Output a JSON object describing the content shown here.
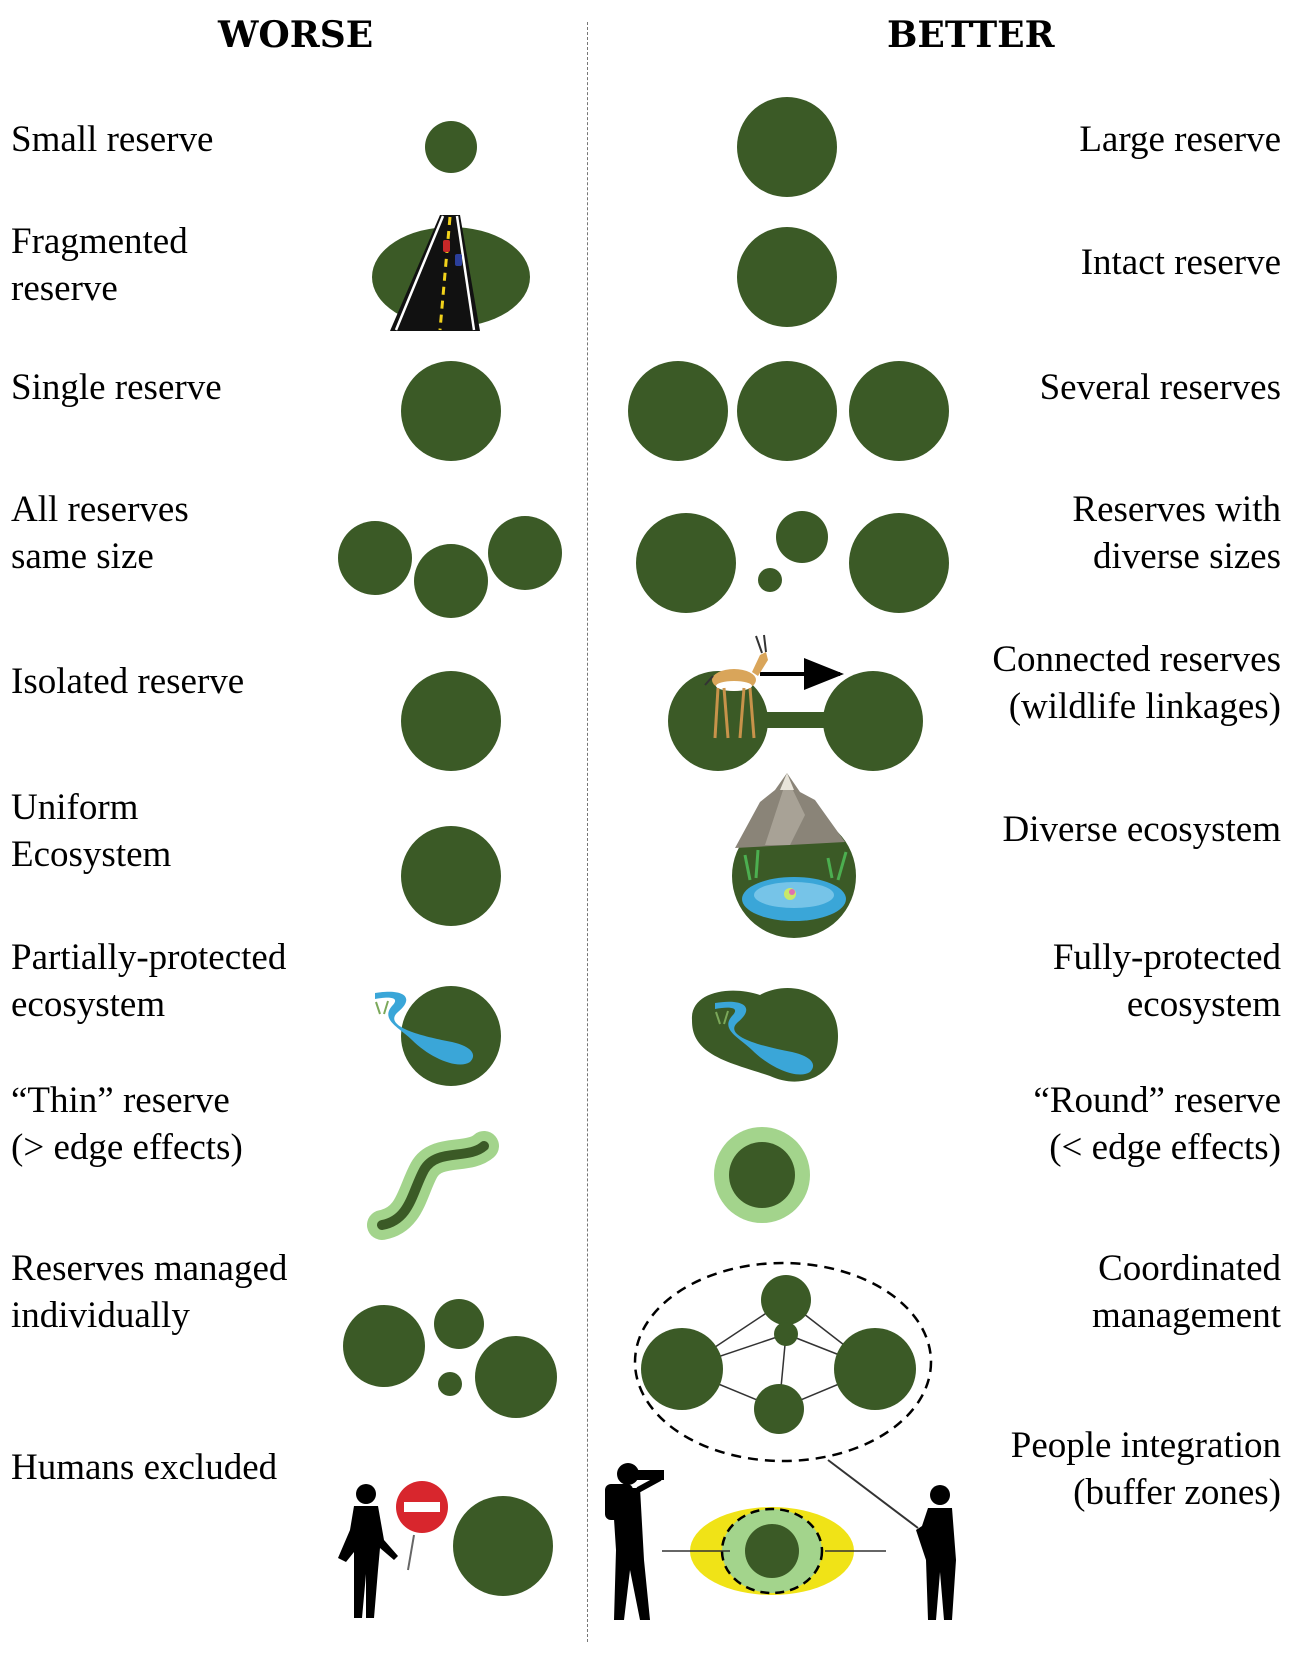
{
  "headers": {
    "worse": "WORSE",
    "better": "BETTER"
  },
  "colors": {
    "reserve": "#3b5a26",
    "edge_zone": "#a3d48c",
    "buffer_yellow": "#f0e317",
    "water": "#3aa6d8",
    "road": "#111111",
    "no_entry_sign": "#d8262d"
  },
  "rows": [
    {
      "worse": "Small reserve",
      "better": "Large reserve"
    },
    {
      "worse": "Fragmented\nreserve",
      "better": "Intact reserve"
    },
    {
      "worse": "Single reserve",
      "better": "Several reserves"
    },
    {
      "worse": "All reserves\nsame size",
      "better": "Reserves with\ndiverse sizes"
    },
    {
      "worse": "Isolated reserve",
      "better": "Connected reserves\n(wildlife linkages)"
    },
    {
      "worse": "Uniform\nEcosystem",
      "better": "Diverse ecosystem"
    },
    {
      "worse": "Partially-protected\necosystem",
      "better": "Fully-protected\necosystem"
    },
    {
      "worse": "“Thin” reserve\n(> edge effects)",
      "better": "“Round” reserve\n(< edge effects)"
    },
    {
      "worse": "Reserves managed\nindividually",
      "better": "Coordinated\nmanagement"
    },
    {
      "worse": "Humans excluded",
      "better": "People integration\n(buffer zones)"
    }
  ],
  "icons": [
    "road-icon",
    "gazelle-icon",
    "mountain-icon",
    "pond-icon",
    "river-icon",
    "person-silhouette-icon",
    "no-entry-sign-icon",
    "photographer-silhouette-icon",
    "fisherman-silhouette-icon",
    "arrow-right-icon"
  ]
}
